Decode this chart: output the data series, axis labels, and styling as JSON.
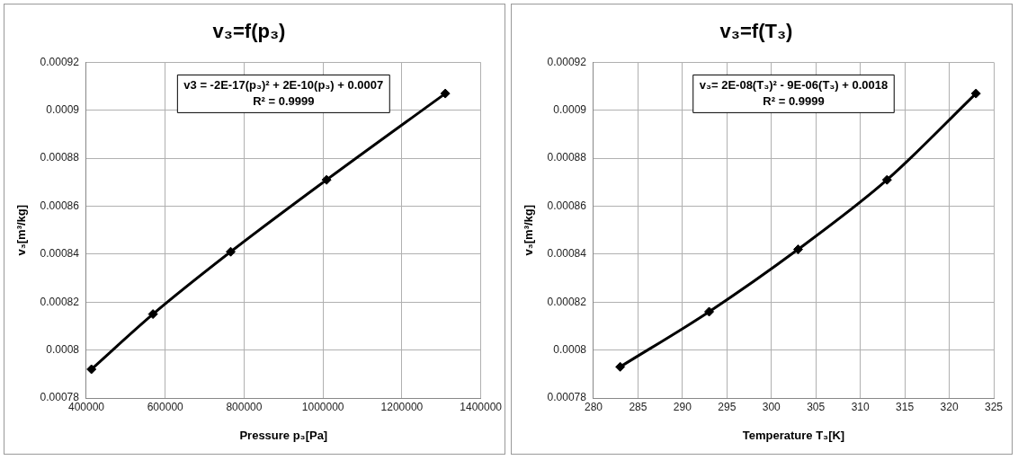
{
  "chart_data": [
    {
      "type": "scatter",
      "title": "v₃=f(p₃)",
      "xlabel": "Pressure p₃[Pa]",
      "ylabel": "v₃[m³/kg]",
      "marker": "diamond",
      "grid": true,
      "legend": false,
      "xlim": [
        400000,
        1400000
      ],
      "xticks": [
        400000,
        600000,
        800000,
        1000000,
        1200000,
        1400000
      ],
      "ylim": [
        0.00078,
        0.00092
      ],
      "yticks": [
        0.00078,
        0.0008,
        0.00082,
        0.00084,
        0.00086,
        0.00088,
        0.0009,
        0.00092
      ],
      "annotations": [
        "v3 = -2E-17(p₃)² + 2E-10(p₃) + 0.0007",
        "R² = 0.9999"
      ],
      "series": [
        {
          "color": "#000000",
          "x": [
            413000,
            569000,
            766000,
            1009000,
            1310000
          ],
          "values": [
            0.000792,
            0.000815,
            0.000841,
            0.000871,
            0.000907
          ]
        },
        {
          "type": "line",
          "color": "#000000",
          "marker": "none",
          "x": [
            413000,
            569000,
            766000,
            1009000,
            1310000
          ],
          "values": [
            0.000792,
            0.000815,
            0.000841,
            0.000871,
            0.000907
          ]
        }
      ]
    },
    {
      "type": "scatter",
      "title": "v₃=f(T₃)",
      "xlabel": "Temperature T₃[K]",
      "ylabel": "v₃[m³/kg]",
      "marker": "diamond",
      "grid": true,
      "legend": false,
      "xlim": [
        280,
        325
      ],
      "xticks": [
        280,
        285,
        290,
        295,
        300,
        305,
        310,
        315,
        320,
        325
      ],
      "ylim": [
        0.00078,
        0.00092
      ],
      "yticks": [
        0.00078,
        0.0008,
        0.00082,
        0.00084,
        0.00086,
        0.00088,
        0.0009,
        0.00092
      ],
      "annotations": [
        "v₃= 2E-08(T₃)² - 9E-06(T₃) + 0.0018",
        "R² = 0.9999"
      ],
      "series": [
        {
          "color": "#000000",
          "x": [
            283,
            293,
            303,
            313,
            323
          ],
          "values": [
            0.000793,
            0.000816,
            0.000842,
            0.000871,
            0.000907
          ]
        },
        {
          "type": "line",
          "color": "#000000",
          "marker": "none",
          "x": [
            283,
            293,
            303,
            313,
            323
          ],
          "values": [
            0.000793,
            0.000816,
            0.000842,
            0.000871,
            0.000907
          ]
        }
      ]
    }
  ]
}
